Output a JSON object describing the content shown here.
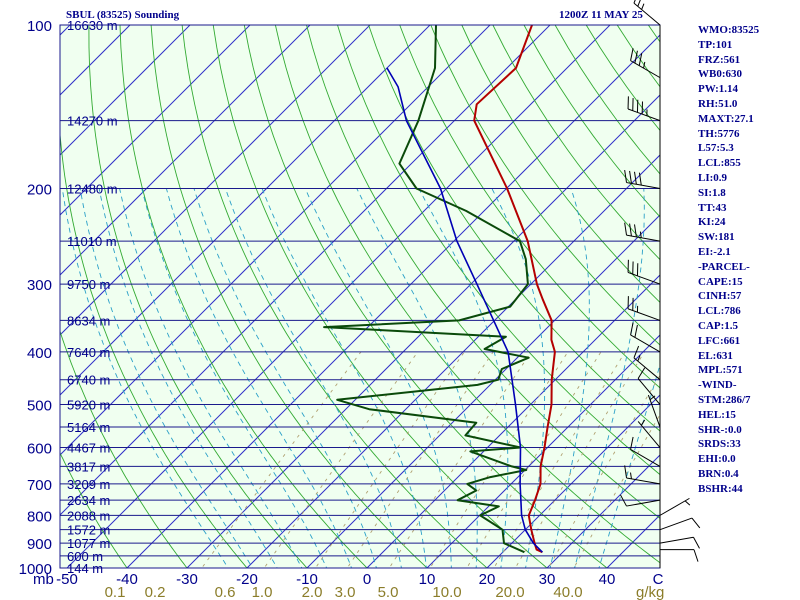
{
  "header": {
    "title_left": "SBUL (83525) Sounding",
    "title_right": "1200Z 11 MAY 25"
  },
  "indices": [
    "WMO:83525",
    "TP:101",
    "FRZ:561",
    "WB0:630",
    "PW:1.14",
    "RH:51.0",
    "MAXT:27.1",
    "TH:5776",
    "L57:5.3",
    "LCL:855",
    "LI:0.9",
    "SI:1.8",
    "TT:43",
    "KI:24",
    "SW:181",
    "EI:-2.1",
    "-PARCEL-",
    "CAPE:15",
    "CINH:57",
    "LCL:786",
    "CAP:1.5",
    "LFC:661",
    "EL:631",
    "MPL:571",
    "-WIND-",
    "STM:286/7",
    "HEL:15",
    "SHR-:0.0",
    "SRDS:33",
    "EHI:0.0",
    "BRN:0.4",
    "BSHR:44"
  ],
  "colors": {
    "isobar": "#1a1a8c",
    "isotherm": "#3030c8",
    "dry_adiabat": "#33aa33",
    "moist_adiabat": "#2aa0c8",
    "mixing_ratio": "#b0a070",
    "temperature": "#b40000",
    "dewpoint": "#0a4a0a",
    "parcel": "#0000b4",
    "text": "#00008b",
    "mixing_ratio_labels": "#8b7d2a",
    "wind_barb": "#000000",
    "background": "#f0fff0"
  },
  "chart_data": {
    "type": "line",
    "subtype": "skew-T log-P thermodynamic diagram",
    "y_scale": "log",
    "ylim": [
      1000,
      100
    ],
    "xlim": [
      -50,
      50
    ],
    "xlabel_units": "C",
    "ylabel_units": "mb",
    "mixing_ratio_units": "g/kg",
    "pressure_ticks": [
      100,
      200,
      300,
      400,
      500,
      600,
      700,
      800,
      900,
      1000
    ],
    "temperature_ticks": [
      -50,
      -40,
      -30,
      -20,
      -10,
      0,
      10,
      20,
      30,
      40
    ],
    "mixing_ratio_ticks": [
      "0.1",
      "0.2",
      "0.6",
      "1.0",
      "2.0",
      "3.0",
      "5.0",
      "10.0",
      "20.0",
      "40.0"
    ],
    "height_labels": [
      {
        "p": 100,
        "label": "16630 m"
      },
      {
        "p": 150,
        "label": "14270 m"
      },
      {
        "p": 200,
        "label": "12480 m"
      },
      {
        "p": 250,
        "label": "11010 m"
      },
      {
        "p": 300,
        "label": "9750 m"
      },
      {
        "p": 350,
        "label": "8634 m"
      },
      {
        "p": 400,
        "label": "7640 m"
      },
      {
        "p": 450,
        "label": "6740 m"
      },
      {
        "p": 500,
        "label": "5920 m"
      },
      {
        "p": 550,
        "label": "5164 m"
      },
      {
        "p": 600,
        "label": "4467 m"
      },
      {
        "p": 650,
        "label": "3817 m"
      },
      {
        "p": 700,
        "label": "3209 m"
      },
      {
        "p": 750,
        "label": "2634 m"
      },
      {
        "p": 800,
        "label": "2088 m"
      },
      {
        "p": 850,
        "label": "1572 m"
      },
      {
        "p": 900,
        "label": "1077 m"
      },
      {
        "p": 950,
        "label": "600 m"
      },
      {
        "p": 1000,
        "label": "144 m"
      }
    ],
    "series": [
      {
        "key": "temperature",
        "points": [
          [
            935,
            26.6
          ],
          [
            925,
            25.2
          ],
          [
            900,
            23.8
          ],
          [
            850,
            21.0
          ],
          [
            800,
            18.2
          ],
          [
            750,
            16.7
          ],
          [
            700,
            14.9
          ],
          [
            650,
            12.0
          ],
          [
            600,
            9.5
          ],
          [
            550,
            6.6
          ],
          [
            500,
            3.5
          ],
          [
            450,
            -0.6
          ],
          [
            400,
            -4.7
          ],
          [
            380,
            -7.3
          ],
          [
            350,
            -10.5
          ],
          [
            320,
            -15.5
          ],
          [
            300,
            -19.0
          ],
          [
            250,
            -27.7
          ],
          [
            200,
            -39.9
          ],
          [
            150,
            -56.7
          ],
          [
            140,
            -59.0
          ],
          [
            120,
            -58.5
          ],
          [
            100,
            -63.0
          ]
        ]
      },
      {
        "key": "dewpoint",
        "points": [
          [
            935,
            23.6
          ],
          [
            900,
            18.7
          ],
          [
            850,
            16.2
          ],
          [
            800,
            10.1
          ],
          [
            770,
            11.7
          ],
          [
            750,
            3.8
          ],
          [
            720,
            5.3
          ],
          [
            700,
            2.7
          ],
          [
            680,
            5.4
          ],
          [
            660,
            10.2
          ],
          [
            650,
            7.2
          ],
          [
            610,
            -2.2
          ],
          [
            600,
            5.5
          ],
          [
            570,
            -5.7
          ],
          [
            540,
            -6.0
          ],
          [
            510,
            -26.1
          ],
          [
            490,
            -33.0
          ],
          [
            460,
            -12.1
          ],
          [
            450,
            -9.5
          ],
          [
            430,
            -10.7
          ],
          [
            410,
            -8.1
          ],
          [
            395,
            -16.9
          ],
          [
            375,
            -15.4
          ],
          [
            360,
            -47.3
          ],
          [
            350,
            -25.9
          ],
          [
            330,
            -19.7
          ],
          [
            300,
            -20.5
          ],
          [
            270,
            -25.0
          ],
          [
            250,
            -29.0
          ],
          [
            220,
            -43.0
          ],
          [
            200,
            -55.0
          ],
          [
            180,
            -62.0
          ],
          [
            150,
            -66.0
          ],
          [
            120,
            -72.0
          ],
          [
            100,
            -79.0
          ]
        ]
      },
      {
        "key": "parcel",
        "points": [
          [
            935,
            26.6
          ],
          [
            900,
            23.6
          ],
          [
            850,
            20.0
          ],
          [
            800,
            17.0
          ],
          [
            700,
            11.5
          ],
          [
            600,
            5.5
          ],
          [
            500,
            -2.5
          ],
          [
            400,
            -12.5
          ],
          [
            300,
            -29.0
          ],
          [
            250,
            -39.5
          ],
          [
            200,
            -51.0
          ],
          [
            150,
            -68.0
          ],
          [
            130,
            -75.0
          ],
          [
            120,
            -80.0
          ]
        ]
      }
    ],
    "winds": [
      {
        "p": 925,
        "dir": 90,
        "spd": 10
      },
      {
        "p": 900,
        "dir": 80,
        "spd": 10
      },
      {
        "p": 850,
        "dir": 70,
        "spd": 10
      },
      {
        "p": 800,
        "dir": 60,
        "spd": 5
      },
      {
        "p": 750,
        "dir": 260,
        "spd": 10
      },
      {
        "p": 700,
        "dir": 280,
        "spd": 15
      },
      {
        "p": 650,
        "dir": 300,
        "spd": 10
      },
      {
        "p": 600,
        "dir": 320,
        "spd": 5
      },
      {
        "p": 550,
        "dir": 340,
        "spd": 5
      },
      {
        "p": 500,
        "dir": 320,
        "spd": 10
      },
      {
        "p": 450,
        "dir": 310,
        "spd": 15
      },
      {
        "p": 400,
        "dir": 300,
        "spd": 20
      },
      {
        "p": 350,
        "dir": 290,
        "spd": 25
      },
      {
        "p": 300,
        "dir": 290,
        "spd": 30
      },
      {
        "p": 250,
        "dir": 280,
        "spd": 35
      },
      {
        "p": 200,
        "dir": 280,
        "spd": 40
      },
      {
        "p": 150,
        "dir": 290,
        "spd": 45
      },
      {
        "p": 125,
        "dir": 300,
        "spd": 35
      },
      {
        "p": 100,
        "dir": 310,
        "spd": 25
      }
    ]
  }
}
